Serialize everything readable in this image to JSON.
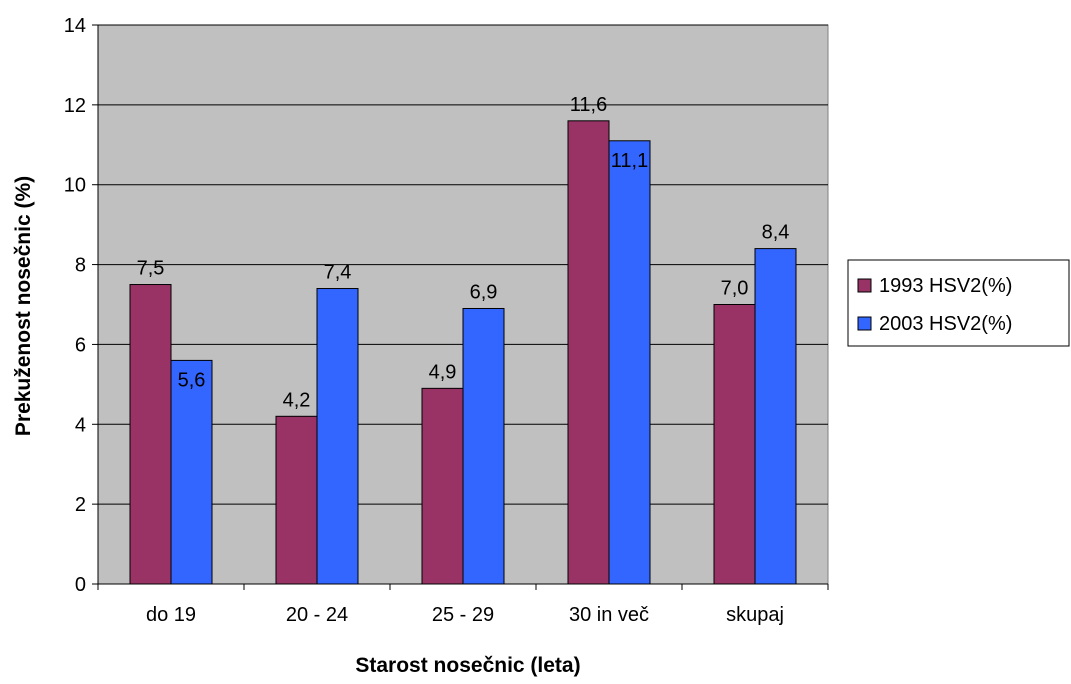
{
  "chart_data": {
    "type": "bar",
    "title": "",
    "xlabel": "Starost nosečnic (leta)",
    "ylabel": "Prekuženost nosečnic (%)",
    "ylim": [
      0,
      14
    ],
    "yticks": [
      0,
      2,
      4,
      6,
      8,
      10,
      12,
      14
    ],
    "grid": true,
    "legend_position": "right",
    "categories": [
      "do 19",
      "20 - 24",
      "25 - 29",
      "30 in več",
      "skupaj"
    ],
    "series": [
      {
        "name": "1993 HSV2(%)",
        "color": "#993366",
        "values": [
          7.5,
          4.2,
          4.9,
          11.6,
          7.0
        ],
        "labels": [
          "7,5",
          "4,2",
          "4,9",
          "11,6",
          "7,0"
        ]
      },
      {
        "name": "2003 HSV2(%)",
        "color": "#3366FF",
        "values": [
          5.6,
          7.4,
          6.9,
          11.1,
          8.4
        ],
        "labels": [
          "5,6",
          "7,4",
          "6,9",
          "11,1",
          "8,4"
        ]
      }
    ],
    "plot_background": "#C0C0C0"
  }
}
